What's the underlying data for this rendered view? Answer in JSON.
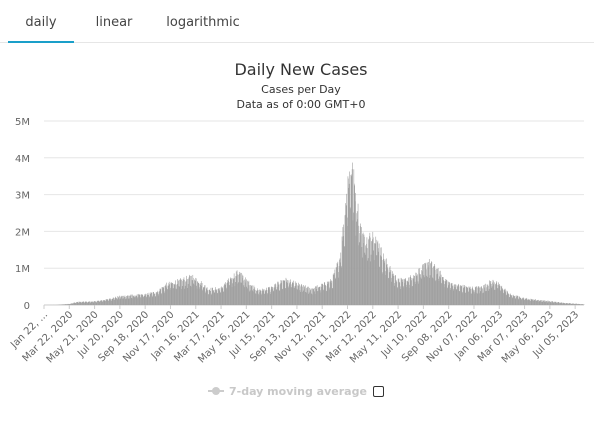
{
  "tabs": [
    {
      "label": "daily",
      "active": true
    },
    {
      "label": "linear",
      "active": false
    },
    {
      "label": "logarithmic",
      "active": false
    }
  ],
  "colors": {
    "accent": "#1a9fc9",
    "series": "#a0a0a0",
    "grid": "#e6e6e6",
    "legend_inactive": "#cccccc"
  },
  "chart_data": {
    "type": "bar",
    "title": "Daily New Cases",
    "subtitle": "Cases per Day",
    "subtitle2": "Data as of 0:00 GMT+0",
    "y_ticks": [
      "0",
      "1M",
      "2M",
      "3M",
      "4M",
      "5M"
    ],
    "ylim": [
      0,
      5000000
    ],
    "x_tick_labels": [
      "Jan 22, ...",
      "Mar 22, 2020",
      "May 21, 2020",
      "Jul 20, 2020",
      "Sep 18, 2020",
      "Nov 17, 2020",
      "Jan 16, 2021",
      "Mar 17, 2021",
      "May 16, 2021",
      "Jul 15, 2021",
      "Sep 13, 2021",
      "Nov 12, 2021",
      "Jan 11, 2022",
      "Mar 12, 2022",
      "May 11, 2022",
      "Jul 10, 2022",
      "Sep 08, 2022",
      "Nov 07, 2022",
      "Jan 06, 2023",
      "Mar 07, 2023",
      "May 06, 2023",
      "Jul 05, 2023"
    ],
    "x_start": "2020-01-22",
    "x_end": "2023-07-26",
    "legend": [
      {
        "name": "7-day moving average",
        "visible": false
      }
    ],
    "grid": true,
    "series": [
      {
        "name": "Daily New Cases",
        "points": [
          [
            "2020-01-22",
            600
          ],
          [
            "2020-02-20",
            2000
          ],
          [
            "2020-03-22",
            30000
          ],
          [
            "2020-04-10",
            80000
          ],
          [
            "2020-05-21",
            95000
          ],
          [
            "2020-06-20",
            150000
          ],
          [
            "2020-07-20",
            230000
          ],
          [
            "2020-08-20",
            260000
          ],
          [
            "2020-09-18",
            280000
          ],
          [
            "2020-10-15",
            350000
          ],
          [
            "2020-11-10",
            560000
          ],
          [
            "2020-12-10",
            650000
          ],
          [
            "2021-01-08",
            760000
          ],
          [
            "2021-01-16",
            720000
          ],
          [
            "2021-02-15",
            420000
          ],
          [
            "2021-03-17",
            450000
          ],
          [
            "2021-04-15",
            780000
          ],
          [
            "2021-04-28",
            880000
          ],
          [
            "2021-05-16",
            650000
          ],
          [
            "2021-06-15",
            380000
          ],
          [
            "2021-07-15",
            470000
          ],
          [
            "2021-08-15",
            680000
          ],
          [
            "2021-09-13",
            560000
          ],
          [
            "2021-10-15",
            430000
          ],
          [
            "2021-11-12",
            530000
          ],
          [
            "2021-12-05",
            650000
          ],
          [
            "2021-12-25",
            1300000
          ],
          [
            "2022-01-05",
            2500000
          ],
          [
            "2022-01-11",
            3300000
          ],
          [
            "2022-01-20",
            3750000
          ],
          [
            "2022-01-28",
            3200000
          ],
          [
            "2022-02-10",
            2100000
          ],
          [
            "2022-02-28",
            1650000
          ],
          [
            "2022-03-12",
            2000000
          ],
          [
            "2022-03-20",
            1800000
          ],
          [
            "2022-04-05",
            1300000
          ],
          [
            "2022-04-20",
            1000000
          ],
          [
            "2022-05-11",
            650000
          ],
          [
            "2022-06-05",
            700000
          ],
          [
            "2022-07-10",
            1000000
          ],
          [
            "2022-07-22",
            1150000
          ],
          [
            "2022-08-10",
            950000
          ],
          [
            "2022-09-08",
            600000
          ],
          [
            "2022-10-10",
            500000
          ],
          [
            "2022-11-07",
            450000
          ],
          [
            "2022-12-01",
            500000
          ],
          [
            "2022-12-20",
            650000
          ],
          [
            "2023-01-06",
            550000
          ],
          [
            "2023-02-01",
            280000
          ],
          [
            "2023-03-07",
            180000
          ],
          [
            "2023-04-05",
            140000
          ],
          [
            "2023-05-06",
            100000
          ],
          [
            "2023-06-05",
            60000
          ],
          [
            "2023-07-05",
            35000
          ],
          [
            "2023-07-26",
            20000
          ]
        ]
      }
    ]
  }
}
